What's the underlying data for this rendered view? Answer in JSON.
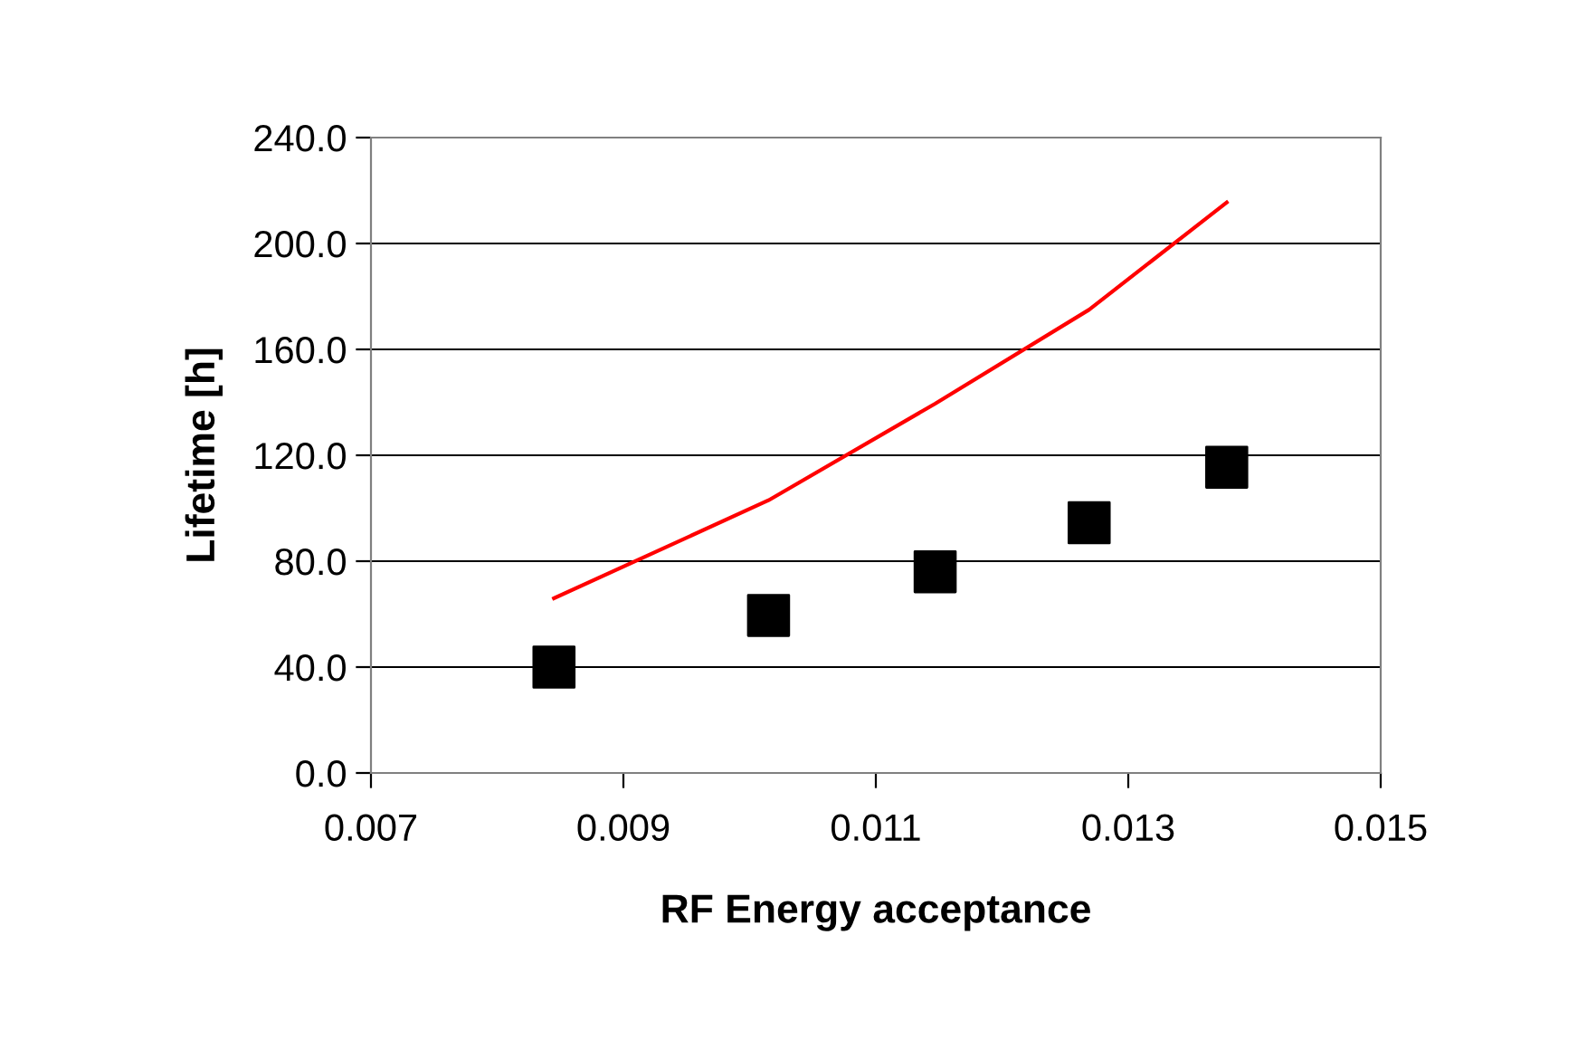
{
  "chart_data": {
    "type": "scatter",
    "xlabel": "RF Energy acceptance",
    "ylabel": "Lifetime [h]",
    "xlim": [
      0.007,
      0.015
    ],
    "xticks": [
      0.007,
      0.009,
      0.011,
      0.013,
      0.015
    ],
    "ylim": [
      0,
      240
    ],
    "yticks": [
      {
        "value": 0,
        "label": "0.0"
      },
      {
        "value": 40,
        "label": "40.0"
      },
      {
        "value": 80,
        "label": "80.0"
      },
      {
        "value": 120,
        "label": "120.0"
      },
      {
        "value": 160,
        "label": "160.0"
      },
      {
        "value": 200,
        "label": "200.0"
      },
      {
        "value": 240,
        "label": "240.0"
      }
    ],
    "grid": "y",
    "series": [
      {
        "marker": "square",
        "color": "#000000",
        "x": [
          0.00845,
          0.01015,
          0.01147,
          0.01269,
          0.01378
        ],
        "values": [
          40,
          59.5,
          76,
          94.5,
          115.5
        ]
      },
      {
        "type": "line",
        "marker": "none",
        "color": "#ff0000",
        "x": [
          0.00845,
          0.01015,
          0.01147,
          0.01269,
          0.01378
        ],
        "values": [
          66,
          103,
          139.5,
          175,
          215.5
        ]
      }
    ]
  }
}
